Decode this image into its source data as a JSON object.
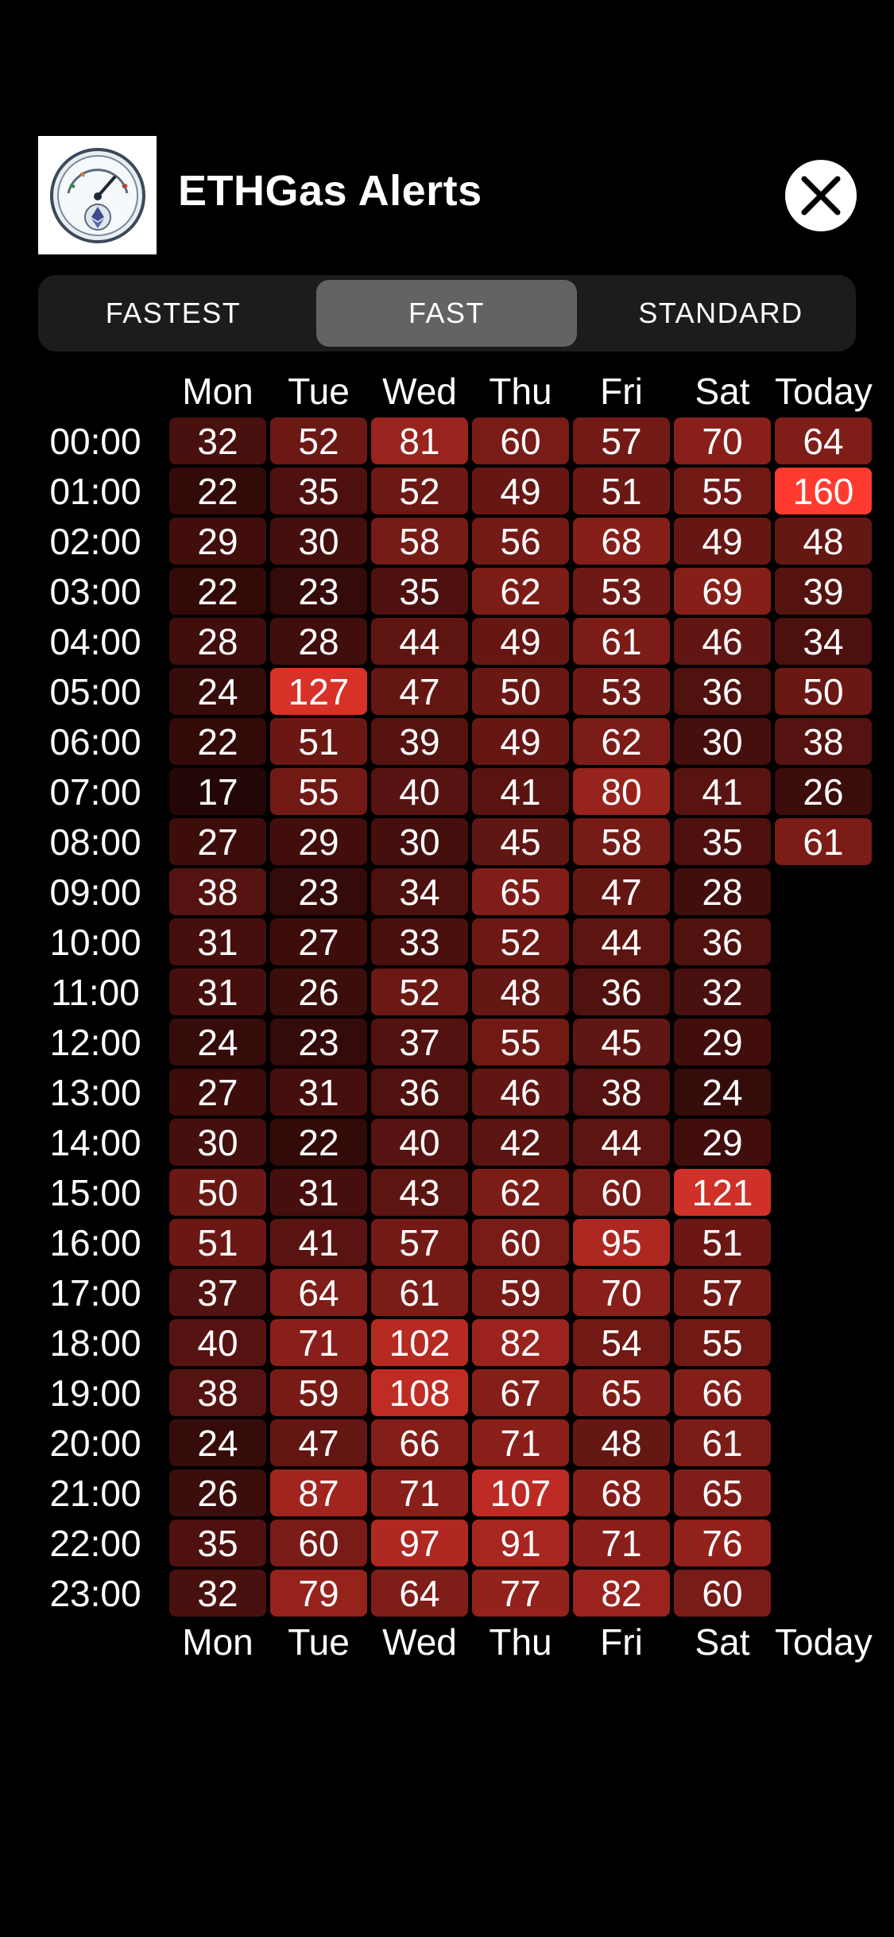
{
  "app": {
    "title": "ETHGas Alerts"
  },
  "icons": {
    "logo": "gas-gauge-logo-icon",
    "close": "close-icon"
  },
  "tabs": [
    {
      "label": "FASTEST",
      "selected": false
    },
    {
      "label": "FAST",
      "selected": true
    },
    {
      "label": "STANDARD",
      "selected": false
    }
  ],
  "colors": {
    "background": "#000000",
    "segment_bg": "#1c1c1e",
    "segment_selected": "#636366",
    "heat_low": "#1a0505",
    "heat_high": "#ff3b30"
  },
  "chart_data": {
    "type": "heatmap",
    "columns": [
      "Mon",
      "Tue",
      "Wed",
      "Thu",
      "Fri",
      "Sat",
      "Today"
    ],
    "rows": [
      "00:00",
      "01:00",
      "02:00",
      "03:00",
      "04:00",
      "05:00",
      "06:00",
      "07:00",
      "08:00",
      "09:00",
      "10:00",
      "11:00",
      "12:00",
      "13:00",
      "14:00",
      "15:00",
      "16:00",
      "17:00",
      "18:00",
      "19:00",
      "20:00",
      "21:00",
      "22:00",
      "23:00"
    ],
    "values": [
      [
        32,
        52,
        81,
        60,
        57,
        70,
        64
      ],
      [
        22,
        35,
        52,
        49,
        51,
        55,
        160
      ],
      [
        29,
        30,
        58,
        56,
        68,
        49,
        48
      ],
      [
        22,
        23,
        35,
        62,
        53,
        69,
        39
      ],
      [
        28,
        28,
        44,
        49,
        61,
        46,
        34
      ],
      [
        24,
        127,
        47,
        50,
        53,
        36,
        50
      ],
      [
        22,
        51,
        39,
        49,
        62,
        30,
        38
      ],
      [
        17,
        55,
        40,
        41,
        80,
        41,
        26
      ],
      [
        27,
        29,
        30,
        45,
        58,
        35,
        61
      ],
      [
        38,
        23,
        34,
        65,
        47,
        28,
        null
      ],
      [
        31,
        27,
        33,
        52,
        44,
        36,
        null
      ],
      [
        31,
        26,
        52,
        48,
        36,
        32,
        null
      ],
      [
        24,
        23,
        37,
        55,
        45,
        29,
        null
      ],
      [
        27,
        31,
        36,
        46,
        38,
        24,
        null
      ],
      [
        30,
        22,
        40,
        42,
        44,
        29,
        null
      ],
      [
        50,
        31,
        43,
        62,
        60,
        121,
        null
      ],
      [
        51,
        41,
        57,
        60,
        95,
        51,
        null
      ],
      [
        37,
        64,
        61,
        59,
        70,
        57,
        null
      ],
      [
        40,
        71,
        102,
        82,
        54,
        55,
        null
      ],
      [
        38,
        59,
        108,
        67,
        65,
        66,
        null
      ],
      [
        24,
        47,
        66,
        71,
        48,
        61,
        null
      ],
      [
        26,
        87,
        71,
        107,
        68,
        65,
        null
      ],
      [
        35,
        60,
        97,
        91,
        71,
        76,
        null
      ],
      [
        32,
        79,
        64,
        77,
        82,
        60,
        null
      ]
    ]
  }
}
